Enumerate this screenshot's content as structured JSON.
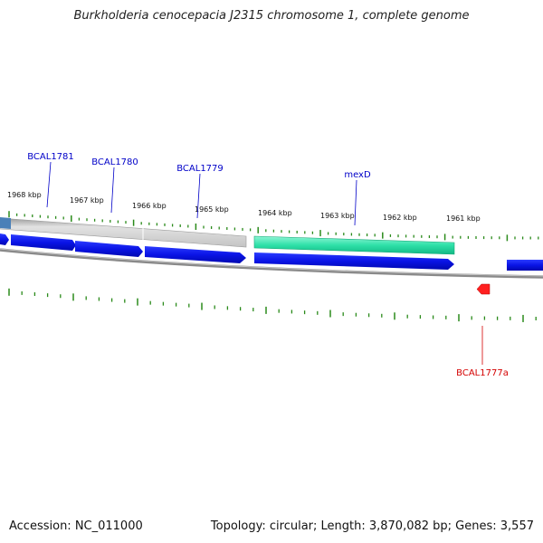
{
  "title": "Burkholderia cenocepacia J2315 chromosome 1, complete genome",
  "footer": {
    "accession": "Accession: NC_011000",
    "summary": "Topology: circular; Length: 3,870,082 bp; Genes: 3,557"
  },
  "ticks": [
    "1968 kbp",
    "1967 kbp",
    "1966 kbp",
    "1965 kbp",
    "1964 kbp",
    "1963 kbp",
    "1962 kbp",
    "1961 kbp"
  ],
  "gene_labels": [
    {
      "name": "BCAL1781",
      "color": "#0000c8"
    },
    {
      "name": "BCAL1780",
      "color": "#0000c8"
    },
    {
      "name": "BCAL1779",
      "color": "#0000c8"
    },
    {
      "name": "mexD",
      "color": "#0000c8"
    },
    {
      "name": "BCAL1777a",
      "color": "#d40000"
    }
  ],
  "colors": {
    "gene": "#0a14e6",
    "selected_gene": "#2ee0a8",
    "highlight": "#b8b8b8",
    "rna": "#ff2020",
    "backbone": "#8a8a8a",
    "tick": "#2a8a1a"
  }
}
